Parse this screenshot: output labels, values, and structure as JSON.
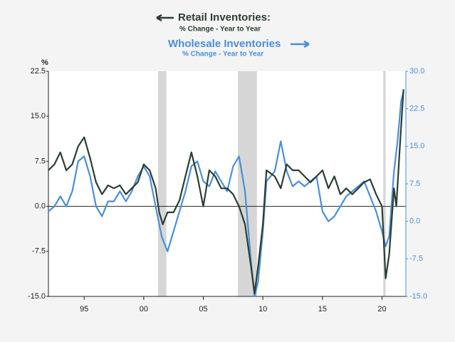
{
  "chart_data": {
    "type": "line",
    "y_unit_label": "%",
    "xlim": [
      1992,
      2022
    ],
    "xticks": [
      {
        "value": 1995,
        "label": "95"
      },
      {
        "value": 2000,
        "label": "00"
      },
      {
        "value": 2005,
        "label": "05"
      },
      {
        "value": 2010,
        "label": "10"
      },
      {
        "value": 2015,
        "label": "15"
      },
      {
        "value": 2020,
        "label": "20"
      }
    ],
    "ylim": [
      -15,
      22.5
    ],
    "yticks": [
      {
        "value": -15,
        "label": "-15.0"
      },
      -7.5,
      {
        "value": 0,
        "label": "0.0"
      },
      7.5,
      {
        "value": 15,
        "label": "15.0"
      },
      22.5
    ],
    "y2lim": [
      -15,
      30
    ],
    "y2ticks": [
      {
        "value": -15,
        "label": "-15.0"
      },
      -7.5,
      {
        "value": 0,
        "label": "0.0"
      },
      7.5,
      {
        "value": 15,
        "label": "15.0"
      },
      22.5,
      {
        "value": 30,
        "label": "30.0"
      }
    ],
    "recessions": [
      [
        2001.2,
        2001.9
      ],
      [
        2007.9,
        2009.5
      ],
      [
        2020.1,
        2020.3
      ]
    ],
    "recession_color": "#d6d6d6",
    "series": [
      {
        "name": "Retail Inventories:",
        "note": "% Change - Year to Year",
        "color": "#2b3d33",
        "axis": "y",
        "x": [
          1992,
          1992.5,
          1993,
          1993.5,
          1994,
          1994.5,
          1995,
          1995.5,
          1996,
          1996.5,
          1997,
          1997.5,
          1998,
          1998.5,
          1999,
          1999.5,
          2000,
          2000.5,
          2001,
          2001.3,
          2001.6,
          2002,
          2002.5,
          2003,
          2003.5,
          2004,
          2004.5,
          2005,
          2005.5,
          2006,
          2006.5,
          2007,
          2007.5,
          2008,
          2008.5,
          2009,
          2009.3,
          2009.6,
          2010,
          2010.3,
          2011,
          2011.5,
          2012,
          2012.5,
          2013,
          2013.5,
          2014,
          2014.5,
          2015,
          2015.5,
          2016,
          2016.5,
          2017,
          2017.5,
          2018,
          2018.5,
          2019,
          2019.5,
          2020,
          2020.3,
          2020.6,
          2021,
          2021.2,
          2021.5,
          2021.8
        ],
        "values": [
          6,
          7,
          9,
          6,
          7,
          10,
          11.5,
          8,
          4,
          2,
          3.5,
          3,
          3.5,
          2,
          3,
          4,
          7,
          6,
          3,
          -1,
          -3,
          -1,
          -1,
          1,
          5,
          9,
          5,
          0,
          6,
          5,
          3,
          3,
          2,
          0,
          -3,
          -10,
          -14.5,
          -10,
          -3,
          6,
          5,
          3,
          7,
          6,
          6,
          5,
          4,
          5,
          6,
          3,
          5,
          2,
          3,
          2,
          3,
          4,
          4.5,
          2,
          0,
          -12,
          -8,
          3,
          0,
          10,
          19.5
        ]
      },
      {
        "name": "Wholesale Inventories",
        "note": "% Change - Year to Year",
        "color": "#4a8fd6",
        "axis": "y2",
        "x": [
          1992,
          1992.5,
          1993,
          1993.5,
          1994,
          1994.5,
          1995,
          1995.5,
          1996,
          1996.5,
          1997,
          1997.5,
          1998,
          1998.5,
          1999,
          1999.5,
          2000,
          2000.5,
          2001,
          2001.5,
          2002,
          2002.5,
          2003,
          2003.5,
          2004,
          2004.5,
          2005,
          2005.5,
          2006,
          2006.5,
          2007,
          2007.5,
          2008,
          2008.5,
          2009,
          2009.3,
          2009.6,
          2010,
          2010.3,
          2011,
          2011.5,
          2012,
          2012.5,
          2013,
          2013.5,
          2014,
          2014.5,
          2015,
          2015.5,
          2016,
          2016.5,
          2017,
          2017.5,
          2018,
          2018.5,
          2019,
          2019.5,
          2020,
          2020.3,
          2020.6,
          2021,
          2021.3,
          2021.6,
          2021.8
        ],
        "values": [
          2,
          3,
          5,
          3,
          6,
          12,
          13,
          9,
          3,
          1,
          4,
          4,
          6,
          4,
          6,
          9,
          11,
          9,
          3,
          -3,
          -6,
          -2,
          2,
          6,
          11,
          12,
          8,
          7,
          10,
          8,
          6,
          11,
          13,
          6,
          -8,
          -15,
          -12,
          -2,
          8,
          10,
          16,
          10,
          7,
          8,
          7,
          8,
          9,
          2,
          0,
          1,
          3,
          5,
          6,
          7,
          8,
          5,
          2,
          -2,
          -5,
          -3,
          10,
          16,
          24,
          26
        ]
      }
    ]
  }
}
